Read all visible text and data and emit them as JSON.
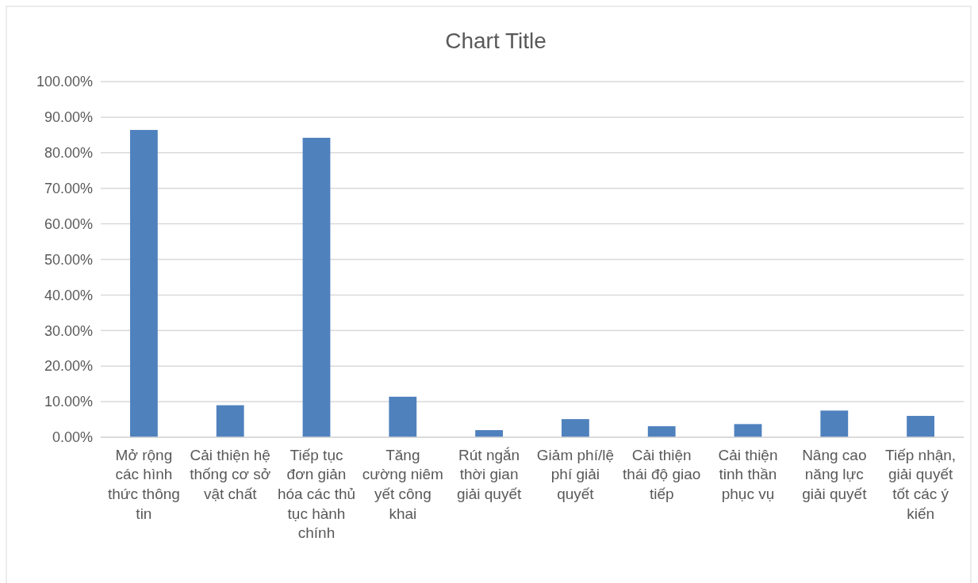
{
  "chart_data": {
    "type": "bar",
    "title": "Chart Title",
    "categories": [
      "Mở rộng các hình thức thông tin",
      "Cải thiện hệ thống cơ sở vật chất",
      "Tiếp tục đơn giản hóa các thủ tục hành chính",
      "Tăng cường niêm yết công khai",
      "Rút ngắn thời gian giải quyết",
      "Giảm phí/lệ phí giải quyết",
      "Cải thiện thái độ giao tiếp",
      "Cải thiện tinh thần phục vụ",
      "Nâng cao năng lực giải quyết",
      "Tiếp nhận, giải quyết tốt các ý kiến"
    ],
    "values": [
      86.4,
      9.0,
      84.2,
      11.4,
      2.0,
      5.1,
      3.1,
      3.7,
      7.5,
      6.0
    ],
    "color": "#4f81bd",
    "ylim": [
      0,
      100
    ],
    "yticks": [
      {
        "value": 0,
        "label": "0.00%"
      },
      {
        "value": 10,
        "label": "10.00%"
      },
      {
        "value": 20,
        "label": "20.00%"
      },
      {
        "value": 30,
        "label": "30.00%"
      },
      {
        "value": 40,
        "label": "40.00%"
      },
      {
        "value": 50,
        "label": "50.00%"
      },
      {
        "value": 60,
        "label": "60.00%"
      },
      {
        "value": 70,
        "label": "70.00%"
      },
      {
        "value": 80,
        "label": "80.00%"
      },
      {
        "value": 90,
        "label": "90.00%"
      },
      {
        "value": 100,
        "label": "100.00%"
      }
    ],
    "grid": "y"
  }
}
